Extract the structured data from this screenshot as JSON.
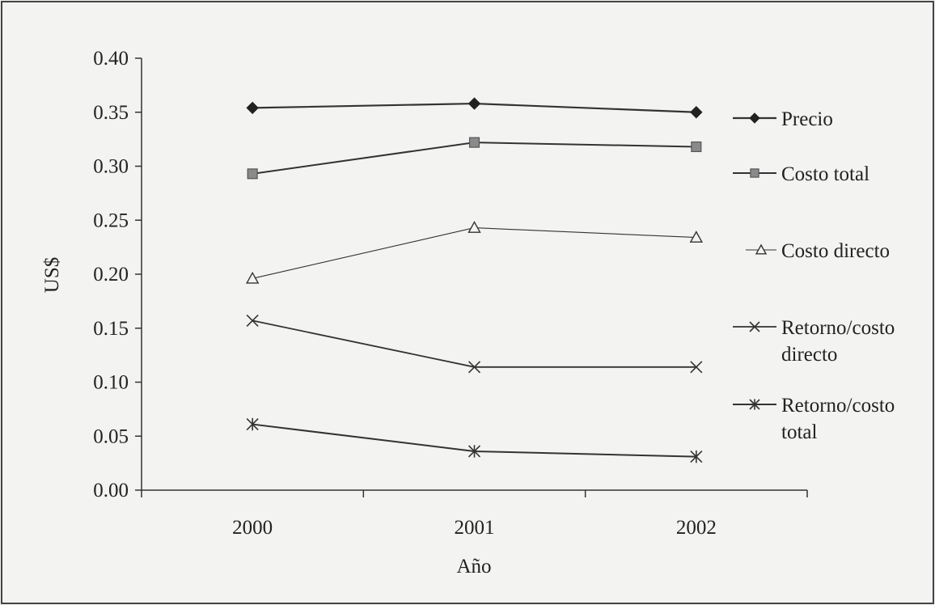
{
  "chart_data": {
    "type": "line",
    "categories": [
      "2000",
      "2001",
      "2002"
    ],
    "xlabel": "Año",
    "ylabel": "US$",
    "ylim": [
      0,
      0.4
    ],
    "yticks": [
      "0.00",
      "0.05",
      "0.10",
      "0.15",
      "0.20",
      "0.25",
      "0.30",
      "0.35",
      "0.40"
    ],
    "grid": false,
    "legend_position": "right",
    "series": [
      {
        "name": "Precio",
        "legend_lines": [
          "Precio"
        ],
        "marker": "diamond",
        "values": [
          0.354,
          0.358,
          0.35
        ]
      },
      {
        "name": "Costo total",
        "legend_lines": [
          "Costo total"
        ],
        "marker": "square",
        "values": [
          0.293,
          0.322,
          0.318
        ]
      },
      {
        "name": "Costo directo",
        "legend_lines": [
          "Costo directo"
        ],
        "marker": "triangle",
        "values": [
          0.196,
          0.243,
          0.234
        ]
      },
      {
        "name": "Retorno/costo directo",
        "legend_lines": [
          "Retorno/costo",
          "directo"
        ],
        "marker": "x",
        "values": [
          0.157,
          0.114,
          0.114
        ]
      },
      {
        "name": "Retorno/costo total",
        "legend_lines": [
          "Retorno/costo",
          "total"
        ],
        "marker": "asterisk",
        "values": [
          0.061,
          0.036,
          0.031
        ]
      }
    ]
  }
}
